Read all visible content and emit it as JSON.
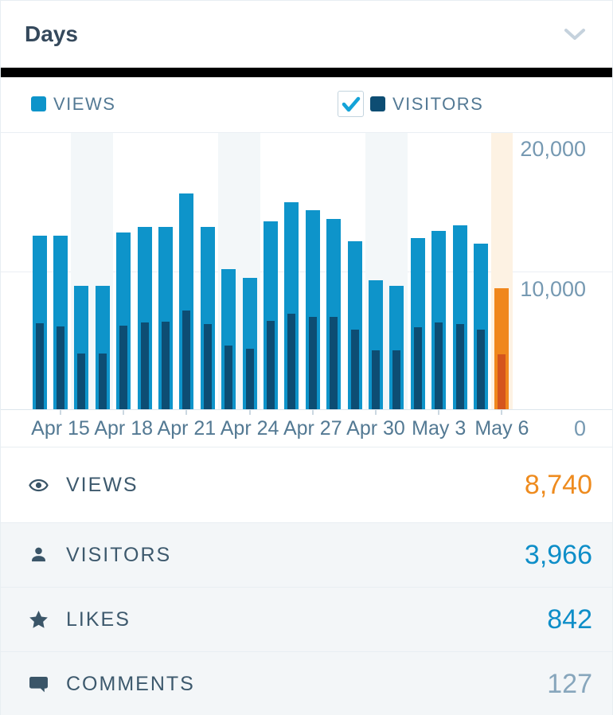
{
  "header": {
    "title": "Days"
  },
  "legend": {
    "views": {
      "label": "VIEWS",
      "swatch_color": "#0e94ca"
    },
    "visitors": {
      "label": "VISITORS",
      "swatch_color": "#0d4d73",
      "checked": true,
      "check_color": "#14a3d8"
    }
  },
  "chart_data": {
    "type": "bar",
    "x": [
      "Apr 14",
      "Apr 15",
      "Apr 16",
      "Apr 17",
      "Apr 18",
      "Apr 19",
      "Apr 20",
      "Apr 21",
      "Apr 22",
      "Apr 23",
      "Apr 24",
      "Apr 25",
      "Apr 26",
      "Apr 27",
      "Apr 28",
      "Apr 29",
      "Apr 30",
      "May 1",
      "May 2",
      "May 3",
      "May 4",
      "May 5",
      "May 6"
    ],
    "series": [
      {
        "name": "Views",
        "values": [
          12550,
          12550,
          8900,
          8900,
          12750,
          13150,
          13150,
          15600,
          13150,
          10100,
          9500,
          13550,
          14950,
          14350,
          13750,
          12150,
          9330,
          8900,
          12350,
          12900,
          13300,
          11950,
          8740
        ],
        "color": "#0e94ca",
        "selected_color": "#f0871d"
      },
      {
        "name": "Visitors",
        "values": [
          6230,
          5960,
          4040,
          4040,
          6020,
          6250,
          6310,
          7110,
          6160,
          4600,
          4370,
          6390,
          6910,
          6680,
          6680,
          5770,
          4230,
          4230,
          5900,
          6250,
          6160,
          5770,
          3966
        ],
        "color": "#0d4d73",
        "selected_color": "#d5551d"
      }
    ],
    "ylim": [
      0,
      20000
    ],
    "ytick_labels": [
      "20,000",
      "10,000",
      "0"
    ],
    "xticks": [
      {
        "index": 1,
        "label": "Apr 15"
      },
      {
        "index": 4,
        "label": "Apr 18"
      },
      {
        "index": 7,
        "label": "Apr 21"
      },
      {
        "index": 10,
        "label": "Apr 24"
      },
      {
        "index": 13,
        "label": "Apr 27"
      },
      {
        "index": 16,
        "label": "Apr 30"
      },
      {
        "index": 19,
        "label": "May 3"
      },
      {
        "index": 22,
        "label": "May 6"
      }
    ],
    "weekend_indices": [
      2,
      3,
      9,
      10,
      16,
      17
    ],
    "selected_index": 22,
    "weekend_band_color": "#f3f7f9",
    "selected_band_color": "#fdf2e3",
    "grid": true,
    "legend_position": "top"
  },
  "summary": {
    "rows": [
      {
        "icon": "eye-icon",
        "label": "VIEWS",
        "value": "8,740",
        "value_color": "#ee8b1e"
      },
      {
        "icon": "person-icon",
        "label": "VISITORS",
        "value": "3,966",
        "value_color": "#0e8ec8"
      },
      {
        "icon": "star-icon",
        "label": "LIKES",
        "value": "842",
        "value_color": "#0e8ec8"
      },
      {
        "icon": "comment-icon",
        "label": "COMMENTS",
        "value": "127",
        "value_color": "#87a6bc"
      }
    ]
  }
}
